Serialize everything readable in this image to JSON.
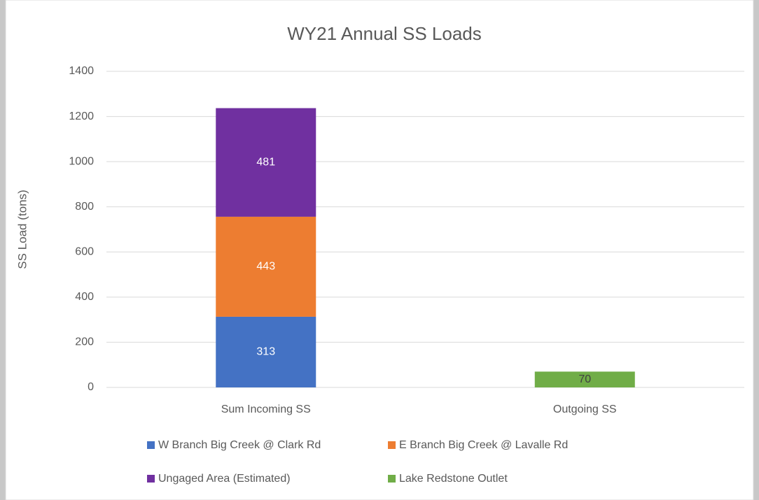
{
  "chart_data": {
    "type": "stacked_bar",
    "title": "WY21 Annual SS Loads",
    "y_label": "SS Load (tons)",
    "categories": [
      "Sum Incoming SS",
      "Outgoing SS"
    ],
    "series": [
      {
        "name": "W Branch Big Creek @ Clark Rd",
        "color": "#4472c4",
        "label_color": "#ffffff",
        "values": [
          313,
          null
        ]
      },
      {
        "name": "E Branch Big Creek @ Lavalle Rd",
        "color": "#ed7d31",
        "label_color": "#ffffff",
        "values": [
          443,
          null
        ]
      },
      {
        "name": "Ungaged Area (Estimated)",
        "color": "#7030a0",
        "label_color": "#ffffff",
        "values": [
          481,
          null
        ]
      },
      {
        "name": "Lake Redstone Outlet",
        "color": "#70ad47",
        "label_color": "#404040",
        "values": [
          null,
          70
        ]
      }
    ],
    "ylim": [
      0,
      1400
    ],
    "yticks": [
      0,
      200,
      400,
      600,
      800,
      1000,
      1200,
      1400
    ],
    "grid": true,
    "legend": "bottom"
  }
}
